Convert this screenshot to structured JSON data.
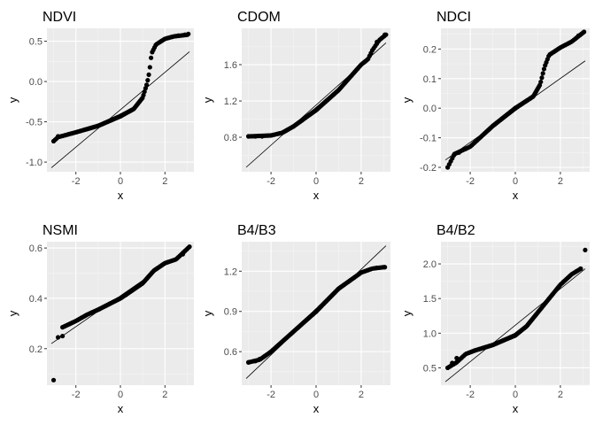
{
  "chart_data": [
    {
      "type": "scatter",
      "title": "NDVI",
      "xlabel": "x",
      "ylabel": "y",
      "xlim": [
        -3.3,
        3.3
      ],
      "ylim": [
        -1.12,
        0.66
      ],
      "xticks": [
        {
          "v": -2,
          "label": "-2"
        },
        {
          "v": 0,
          "label": "0"
        },
        {
          "v": 2,
          "label": "2"
        }
      ],
      "yticks": [
        {
          "v": 0.5,
          "label": "0.5"
        },
        {
          "v": 0.0,
          "label": "0.0"
        },
        {
          "v": -0.5,
          "label": "-0.5"
        },
        {
          "v": -1.0,
          "label": "-1.0"
        }
      ],
      "reference_line": {
        "x1": -3.1,
        "y1": -1.07,
        "x2": 3.1,
        "y2": 0.37
      },
      "quantile_curve": [
        [
          -3.0,
          -0.74
        ],
        [
          -2.8,
          -0.69
        ],
        [
          -2.0,
          -0.63
        ],
        [
          -1.0,
          -0.55
        ],
        [
          0.0,
          -0.43
        ],
        [
          0.6,
          -0.34
        ],
        [
          1.0,
          -0.2
        ],
        [
          1.2,
          -0.02
        ],
        [
          1.3,
          0.12
        ],
        [
          1.4,
          0.35
        ],
        [
          1.6,
          0.46
        ],
        [
          2.0,
          0.53
        ],
        [
          2.4,
          0.56
        ],
        [
          3.0,
          0.58
        ]
      ],
      "endpoint_points": [
        [
          -3.0,
          -0.74
        ],
        [
          -2.8,
          -0.68
        ],
        [
          2.6,
          0.57
        ],
        [
          2.9,
          0.58
        ],
        [
          3.05,
          0.59
        ]
      ]
    },
    {
      "type": "scatter",
      "title": "CDOM",
      "xlabel": "x",
      "ylabel": "y",
      "xlim": [
        -3.3,
        3.3
      ],
      "ylim": [
        0.42,
        2.0
      ],
      "xticks": [
        {
          "v": -2,
          "label": "-2"
        },
        {
          "v": 0,
          "label": "0"
        },
        {
          "v": 2,
          "label": "2"
        }
      ],
      "yticks": [
        {
          "v": 1.6,
          "label": "1.6"
        },
        {
          "v": 1.2,
          "label": "1.2"
        },
        {
          "v": 0.8,
          "label": "0.8"
        }
      ],
      "reference_line": {
        "x1": -3.1,
        "y1": 0.47,
        "x2": 3.1,
        "y2": 1.84
      },
      "quantile_curve": [
        [
          -3.0,
          0.81
        ],
        [
          -2.0,
          0.82
        ],
        [
          -1.5,
          0.85
        ],
        [
          -1.0,
          0.92
        ],
        [
          0.0,
          1.1
        ],
        [
          1.0,
          1.32
        ],
        [
          1.5,
          1.46
        ],
        [
          2.0,
          1.6
        ],
        [
          2.3,
          1.66
        ],
        [
          2.5,
          1.76
        ],
        [
          2.8,
          1.87
        ],
        [
          3.1,
          1.93
        ]
      ],
      "endpoint_points": [
        [
          -3.0,
          0.81
        ],
        [
          -2.7,
          0.81
        ],
        [
          -2.4,
          0.81
        ],
        [
          2.7,
          1.85
        ],
        [
          3.05,
          1.93
        ]
      ]
    },
    {
      "type": "scatter",
      "title": "NDCI",
      "xlabel": "x",
      "ylabel": "y",
      "xlim": [
        -3.3,
        3.3
      ],
      "ylim": [
        -0.215,
        0.27
      ],
      "xticks": [
        {
          "v": -2,
          "label": "-2"
        },
        {
          "v": 0,
          "label": "0"
        },
        {
          "v": 2,
          "label": "2"
        }
      ],
      "yticks": [
        {
          "v": 0.2,
          "label": "0.2"
        },
        {
          "v": 0.1,
          "label": "0.1"
        },
        {
          "v": 0.0,
          "label": "0.0"
        },
        {
          "v": -0.1,
          "label": "-0.1"
        },
        {
          "v": -0.2,
          "label": "-0.2"
        }
      ],
      "reference_line": {
        "x1": -3.1,
        "y1": -0.175,
        "x2": 3.1,
        "y2": 0.16
      },
      "quantile_curve": [
        [
          -3.0,
          -0.2
        ],
        [
          -2.7,
          -0.155
        ],
        [
          -2.0,
          -0.13
        ],
        [
          -1.0,
          -0.06
        ],
        [
          0.0,
          0.0
        ],
        [
          0.8,
          0.04
        ],
        [
          1.1,
          0.08
        ],
        [
          1.3,
          0.14
        ],
        [
          1.5,
          0.18
        ],
        [
          2.0,
          0.205
        ],
        [
          2.5,
          0.225
        ],
        [
          3.0,
          0.255
        ]
      ],
      "endpoint_points": [
        [
          -3.0,
          -0.2
        ],
        [
          -2.7,
          -0.155
        ],
        [
          -2.5,
          -0.15
        ],
        [
          2.8,
          0.245
        ],
        [
          3.05,
          0.258
        ]
      ]
    },
    {
      "type": "scatter",
      "title": "NSMI",
      "xlabel": "x",
      "ylabel": "y",
      "xlim": [
        -3.3,
        3.3
      ],
      "ylim": [
        0.055,
        0.625
      ],
      "xticks": [
        {
          "v": -2,
          "label": "-2"
        },
        {
          "v": 0,
          "label": "0"
        },
        {
          "v": 2,
          "label": "2"
        }
      ],
      "yticks": [
        {
          "v": 0.6,
          "label": "0.6"
        },
        {
          "v": 0.4,
          "label": "0.4"
        },
        {
          "v": 0.2,
          "label": "0.2"
        }
      ],
      "reference_line": {
        "x1": -3.1,
        "y1": 0.22,
        "x2": 3.1,
        "y2": 0.6
      },
      "quantile_curve": [
        [
          -2.6,
          0.285
        ],
        [
          -2.0,
          0.31
        ],
        [
          -1.5,
          0.335
        ],
        [
          -1.0,
          0.355
        ],
        [
          0.0,
          0.4
        ],
        [
          1.0,
          0.46
        ],
        [
          1.5,
          0.51
        ],
        [
          2.0,
          0.54
        ],
        [
          2.5,
          0.555
        ],
        [
          3.1,
          0.605
        ]
      ],
      "endpoint_points": [
        [
          -3.0,
          0.075
        ],
        [
          -2.8,
          0.245
        ],
        [
          -2.6,
          0.25
        ],
        [
          2.8,
          0.575
        ],
        [
          3.1,
          0.605
        ]
      ]
    },
    {
      "type": "scatter",
      "title": "B4/B3",
      "xlabel": "x",
      "ylabel": "y",
      "xlim": [
        -3.3,
        3.3
      ],
      "ylim": [
        0.35,
        1.42
      ],
      "xticks": [
        {
          "v": -2,
          "label": "-2"
        },
        {
          "v": 0,
          "label": "0"
        },
        {
          "v": 2,
          "label": "2"
        }
      ],
      "yticks": [
        {
          "v": 1.2,
          "label": "1.2"
        },
        {
          "v": 0.9,
          "label": "0.9"
        },
        {
          "v": 0.6,
          "label": "0.6"
        }
      ],
      "reference_line": {
        "x1": -3.1,
        "y1": 0.4,
        "x2": 3.1,
        "y2": 1.39
      },
      "quantile_curve": [
        [
          -3.0,
          0.52
        ],
        [
          -2.5,
          0.54
        ],
        [
          -2.0,
          0.6
        ],
        [
          -1.0,
          0.75
        ],
        [
          0.0,
          0.9
        ],
        [
          1.0,
          1.07
        ],
        [
          1.5,
          1.13
        ],
        [
          2.0,
          1.19
        ],
        [
          2.5,
          1.22
        ],
        [
          3.0,
          1.23
        ]
      ],
      "endpoint_points": [
        [
          -3.0,
          0.52
        ],
        [
          -2.7,
          0.53
        ],
        [
          -2.5,
          0.545
        ],
        [
          2.7,
          1.225
        ],
        [
          3.05,
          1.23
        ]
      ]
    },
    {
      "type": "scatter",
      "title": "B4/B2",
      "xlabel": "x",
      "ylabel": "y",
      "xlim": [
        -3.3,
        3.3
      ],
      "ylim": [
        0.25,
        2.32
      ],
      "xticks": [
        {
          "v": -2,
          "label": "-2"
        },
        {
          "v": 0,
          "label": "0"
        },
        {
          "v": 2,
          "label": "2"
        }
      ],
      "yticks": [
        {
          "v": 2.0,
          "label": "2.0"
        },
        {
          "v": 1.5,
          "label": "1.5"
        },
        {
          "v": 1.0,
          "label": "1.0"
        },
        {
          "v": 0.5,
          "label": "0.5"
        }
      ],
      "reference_line": {
        "x1": -3.1,
        "y1": 0.3,
        "x2": 3.1,
        "y2": 1.93
      },
      "quantile_curve": [
        [
          -3.0,
          0.5
        ],
        [
          -2.6,
          0.58
        ],
        [
          -2.2,
          0.7
        ],
        [
          -1.8,
          0.75
        ],
        [
          -1.0,
          0.83
        ],
        [
          0.0,
          0.97
        ],
        [
          0.5,
          1.1
        ],
        [
          1.0,
          1.3
        ],
        [
          1.5,
          1.5
        ],
        [
          2.0,
          1.7
        ],
        [
          2.5,
          1.85
        ],
        [
          2.9,
          1.93
        ]
      ],
      "endpoint_points": [
        [
          -3.0,
          0.5
        ],
        [
          -2.8,
          0.57
        ],
        [
          -2.6,
          0.64
        ],
        [
          2.9,
          1.93
        ],
        [
          3.1,
          2.2
        ]
      ]
    }
  ]
}
